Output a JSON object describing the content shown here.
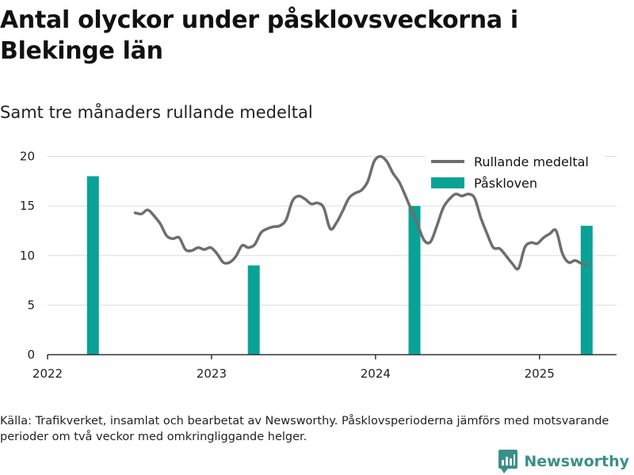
{
  "title": "Antal olyckor under påsklovsveckorna i Blekinge län",
  "subtitle": "Samt tre månaders rullande medeltal",
  "source": "Källa: Trafikverket, insamlat och bearbetat av Newsworthy. Påsklovsperioderna jämförs med motsvarande perioder om två veckor med omkringliggande helger.",
  "brand": {
    "name": "Newsworthy",
    "icon": "newsworthy-logo-icon"
  },
  "colors": {
    "line": "#6e6e6e",
    "bar": "#0aa296",
    "grid": "#dddddd",
    "axis": "#333333"
  },
  "chart_data": {
    "type": "bar+line",
    "xlim": [
      2022.0,
      2025.47
    ],
    "ylim": [
      0,
      21
    ],
    "x_ticks": [
      2022,
      2023,
      2024,
      2025
    ],
    "x_tick_labels": [
      "2022",
      "2023",
      "2024",
      "2025"
    ],
    "y_ticks": [
      0,
      5,
      10,
      15,
      20
    ],
    "y_tick_labels": [
      "0",
      "5",
      "10",
      "15",
      "20"
    ],
    "grid": true,
    "legend_position": "top-right",
    "legend": [
      "Rullande medeltal",
      "Påskloven"
    ],
    "series": [
      {
        "name": "Påskloven",
        "type": "bar",
        "x": [
          "2022-04-12",
          "2023-04-05",
          "2024-03-28",
          "2025-04-16"
        ],
        "values": [
          18,
          9,
          15,
          13
        ]
      },
      {
        "name": "Rullande medeltal",
        "type": "line",
        "x": [
          "2022-07-15",
          "2022-07-29",
          "2022-08-12",
          "2022-08-26",
          "2022-09-09",
          "2022-09-23",
          "2022-10-07",
          "2022-10-21",
          "2022-11-04",
          "2022-11-18",
          "2022-12-02",
          "2022-12-16",
          "2022-12-30",
          "2023-01-13",
          "2023-01-27",
          "2023-02-10",
          "2023-02-24",
          "2023-03-10",
          "2023-03-24",
          "2023-04-07",
          "2023-04-21",
          "2023-05-05",
          "2023-05-19",
          "2023-06-02",
          "2023-06-16",
          "2023-06-30",
          "2023-07-14",
          "2023-07-28",
          "2023-08-11",
          "2023-08-25",
          "2023-09-08",
          "2023-09-22",
          "2023-10-06",
          "2023-10-20",
          "2023-11-03",
          "2023-11-17",
          "2023-12-01",
          "2023-12-15",
          "2023-12-29",
          "2024-01-12",
          "2024-01-26",
          "2024-02-09",
          "2024-02-23",
          "2024-03-08",
          "2024-03-22",
          "2024-04-05",
          "2024-04-19",
          "2024-05-03",
          "2024-05-17",
          "2024-05-31",
          "2024-06-14",
          "2024-06-28",
          "2024-07-12",
          "2024-07-26",
          "2024-08-09",
          "2024-08-23",
          "2024-09-06",
          "2024-09-20",
          "2024-10-04",
          "2024-10-18",
          "2024-11-01",
          "2024-11-15",
          "2024-11-29",
          "2024-12-13",
          "2024-12-27",
          "2025-01-10",
          "2025-01-24",
          "2025-02-07",
          "2025-02-21",
          "2025-03-07",
          "2025-03-21",
          "2025-04-04",
          "2025-04-18"
        ],
        "values": [
          14.3,
          14.2,
          14.6,
          14.0,
          13.2,
          12.0,
          11.7,
          11.8,
          10.6,
          10.5,
          10.8,
          10.6,
          10.8,
          10.2,
          9.3,
          9.3,
          9.9,
          11.0,
          10.8,
          11.1,
          12.3,
          12.7,
          12.9,
          13.0,
          13.6,
          15.5,
          16.0,
          15.7,
          15.2,
          15.3,
          14.8,
          12.7,
          13.3,
          14.5,
          15.8,
          16.3,
          16.6,
          17.5,
          19.5,
          20.0,
          19.5,
          18.3,
          17.4,
          16.0,
          14.5,
          13.0,
          11.5,
          11.4,
          13.0,
          14.8,
          15.7,
          16.2,
          16.0,
          16.2,
          15.8,
          13.8,
          12.2,
          10.8,
          10.7,
          10.0,
          9.2,
          8.7,
          10.8,
          11.3,
          11.2,
          11.8,
          12.2,
          12.5,
          10.2,
          9.3,
          9.5,
          9.2,
          9.0
        ]
      }
    ]
  }
}
